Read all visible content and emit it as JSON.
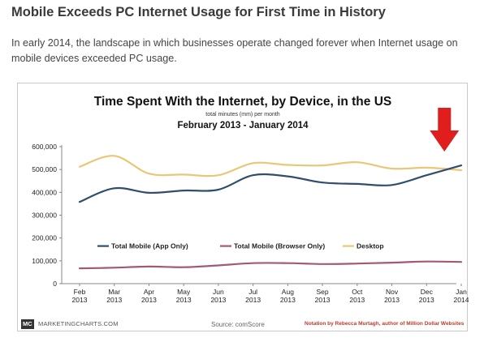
{
  "article": {
    "headline": "Mobile Exceeds PC Internet Usage for First Time in History",
    "intro": "In early 2014, the landscape in which businesses operate changed forever when Internet usage on mobile devices exceeded PC usage."
  },
  "chart_data": {
    "type": "line",
    "title": "Time Spent With the Internet, by Device, in the US",
    "subtitle": "total minutes (mm) per month",
    "date_range": "February 2013 - January 2014",
    "categories_month": [
      "Feb",
      "Mar",
      "Apr",
      "May",
      "Jun",
      "Jul",
      "Aug",
      "Sep",
      "Oct",
      "Nov",
      "Dec",
      "Jan"
    ],
    "categories_year": [
      "2013",
      "2013",
      "2013",
      "2013",
      "2013",
      "2013",
      "2013",
      "2013",
      "2013",
      "2013",
      "2013",
      "2014"
    ],
    "yticks": [
      "0",
      "100,000",
      "200,000",
      "300,000",
      "400,000",
      "500,000",
      "600,000"
    ],
    "ylim": [
      0,
      600000
    ],
    "series": [
      {
        "name": "Total Mobile (App Only)",
        "color": "#2f4e6e",
        "values": [
          358000,
          418000,
          398000,
          408000,
          412000,
          475000,
          470000,
          443000,
          437000,
          432000,
          475000,
          518000
        ]
      },
      {
        "name": "Total Mobile (Browser Only)",
        "color": "#a05a78",
        "values": [
          67000,
          70000,
          75000,
          72000,
          80000,
          90000,
          90000,
          86000,
          88000,
          92000,
          97000,
          95000
        ]
      },
      {
        "name": "Desktop",
        "color": "#e8c777",
        "values": [
          512000,
          560000,
          482000,
          478000,
          475000,
          528000,
          520000,
          518000,
          532000,
          504000,
          508000,
          497000
        ]
      }
    ],
    "legend_position": "middle-left",
    "grid": false
  },
  "footer": {
    "logo": "MC",
    "brand": "MARKETINGCHARTS.COM",
    "source": "Source: comScore",
    "notation": "Notation by Rebecca Murtagh, author of Million Dollar Websites"
  },
  "colors": {
    "arrow": "#e11e1e",
    "axis": "#888888"
  }
}
